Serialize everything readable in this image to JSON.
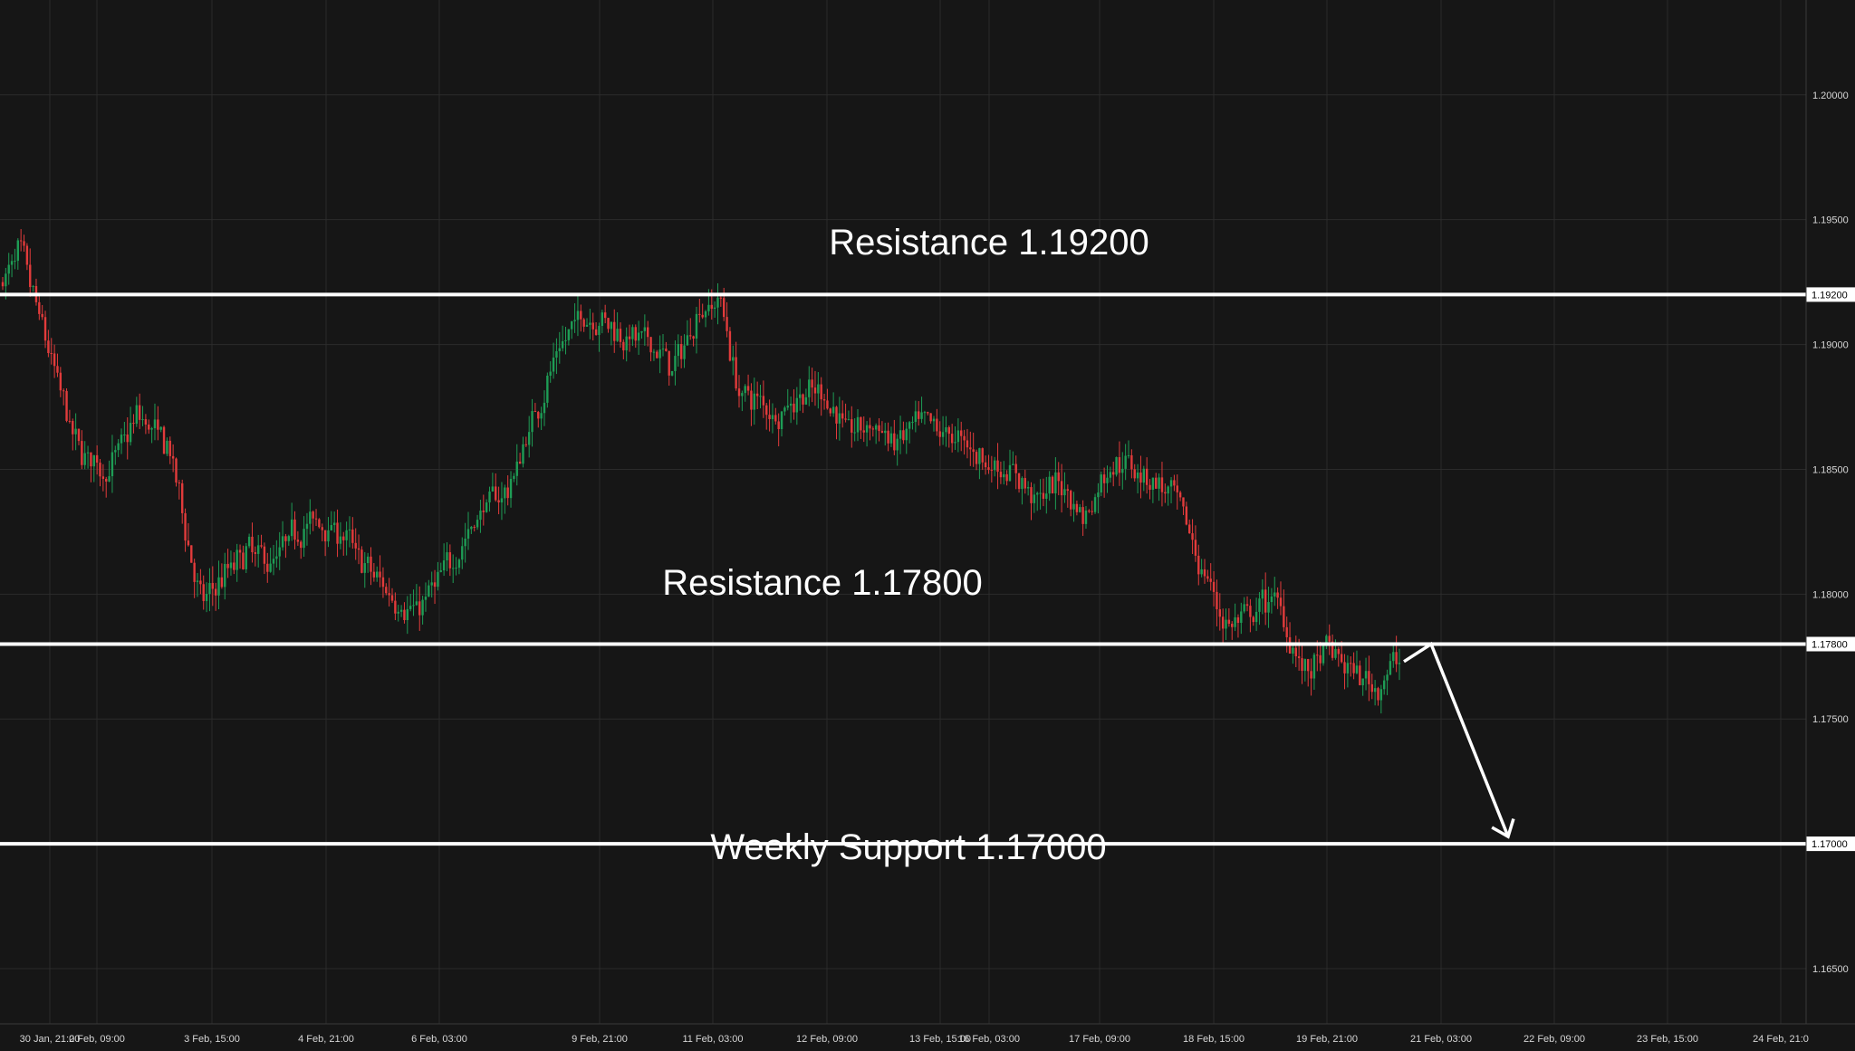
{
  "chart_data": {
    "type": "candlestick",
    "y_axis": {
      "ticks": [
        "1.20000",
        "1.19500",
        "1.19000",
        "1.18500",
        "1.18000",
        "1.17500",
        "1.16500"
      ],
      "range": [
        1.1617,
        1.2038
      ]
    },
    "x_axis": {
      "ticks": [
        "30 Jan, 21:00",
        "2 Feb, 09:00",
        "3 Feb, 15:00",
        "4 Feb, 21:00",
        "6 Feb, 03:00",
        "9 Feb, 21:00",
        "11 Feb, 03:00",
        "12 Feb, 09:00",
        "13 Feb, 15:00",
        "16 Feb, 03:00",
        "17 Feb, 09:00",
        "18 Feb, 15:00",
        "19 Feb, 21:00",
        "21 Feb, 03:00",
        "22 Feb, 09:00",
        "23 Feb, 15:00",
        "24 Feb, 21:0"
      ]
    },
    "price_path": [
      [
        0,
        1.1925
      ],
      [
        2,
        1.1938
      ],
      [
        5,
        1.1905
      ],
      [
        9,
        1.186
      ],
      [
        13,
        1.1848
      ],
      [
        17,
        1.1872
      ],
      [
        21,
        1.1858
      ],
      [
        25,
        1.1795
      ],
      [
        28,
        1.1808
      ],
      [
        31,
        1.1818
      ],
      [
        34,
        1.1812
      ],
      [
        37,
        1.1826
      ],
      [
        40,
        1.1829
      ],
      [
        43,
        1.1824
      ],
      [
        46,
        1.181
      ],
      [
        49,
        1.18
      ],
      [
        52,
        1.1792
      ],
      [
        55,
        1.1805
      ],
      [
        58,
        1.182
      ],
      [
        61,
        1.1836
      ],
      [
        64,
        1.1842
      ],
      [
        67,
        1.187
      ],
      [
        70,
        1.1895
      ],
      [
        73,
        1.1912
      ],
      [
        76,
        1.191
      ],
      [
        79,
        1.1903
      ],
      [
        82,
        1.19
      ],
      [
        85,
        1.189
      ],
      [
        88,
        1.1914
      ],
      [
        91,
        1.1918
      ],
      [
        93,
        1.188
      ],
      [
        95,
        1.1879
      ],
      [
        98,
        1.1872
      ],
      [
        101,
        1.188
      ],
      [
        104,
        1.188
      ],
      [
        107,
        1.1865
      ],
      [
        110,
        1.1868
      ],
      [
        113,
        1.186
      ],
      [
        116,
        1.1868
      ],
      [
        119,
        1.1865
      ],
      [
        122,
        1.186
      ],
      [
        125,
        1.1852
      ],
      [
        128,
        1.1848
      ],
      [
        131,
        1.1838
      ],
      [
        134,
        1.1845
      ],
      [
        137,
        1.183
      ],
      [
        140,
        1.1852
      ],
      [
        143,
        1.1852
      ],
      [
        146,
        1.1845
      ],
      [
        149,
        1.1835
      ],
      [
        152,
        1.1808
      ],
      [
        155,
        1.1787
      ],
      [
        158,
        1.179
      ],
      [
        161,
        1.18
      ],
      [
        163,
        1.1783
      ],
      [
        165,
        1.1767
      ],
      [
        168,
        1.1778
      ],
      [
        171,
        1.1768
      ],
      [
        174,
        1.1763
      ],
      [
        177,
        1.1775
      ]
    ],
    "levels": [
      {
        "name": "Resistance",
        "value": 1.192,
        "tag": "1.19200",
        "label": "Resistance 1.19200"
      },
      {
        "name": "Resistance",
        "value": 1.178,
        "tag": "1.17800",
        "label": "Resistance 1.17800"
      },
      {
        "name": "Weekly Support",
        "value": 1.17,
        "tag": "1.17000",
        "label": "Weekly Support 1.17000"
      }
    ],
    "projection": [
      {
        "x_label": "21 Feb, 03:00",
        "value": 1.178
      },
      {
        "x_label": "22 Feb, 09:00",
        "value": 1.17
      }
    ],
    "colors": {
      "background": "#161616",
      "grid": "#2b2b2b",
      "bull": "#1e9c55",
      "bear": "#e13b3b",
      "level": "#ffffff",
      "text": "#d6d6d6"
    },
    "legend": "none",
    "grid": true
  }
}
